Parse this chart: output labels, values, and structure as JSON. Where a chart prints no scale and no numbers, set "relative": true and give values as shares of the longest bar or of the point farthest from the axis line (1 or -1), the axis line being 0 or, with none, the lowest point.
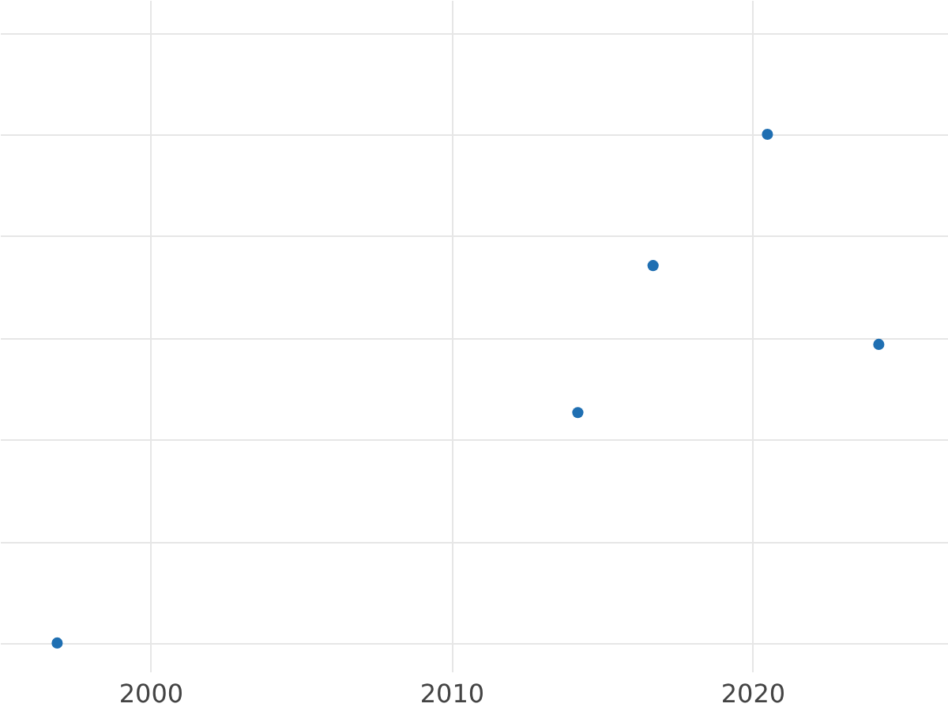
{
  "chart_data": {
    "type": "scatter",
    "relative": true,
    "x": [
      1996.9,
      2014.2,
      2016.7,
      2020.5,
      2024.2
    ],
    "series": [
      {
        "color": "#1f6fb2",
        "values": [
          0,
          0.453,
          0.742,
          1,
          0.587
        ]
      }
    ],
    "xlim": [
      1995,
      2026.5
    ],
    "xticks": [
      2000,
      2010,
      2020
    ],
    "grid": true,
    "marker": "circle",
    "tick_labels": "x"
  }
}
